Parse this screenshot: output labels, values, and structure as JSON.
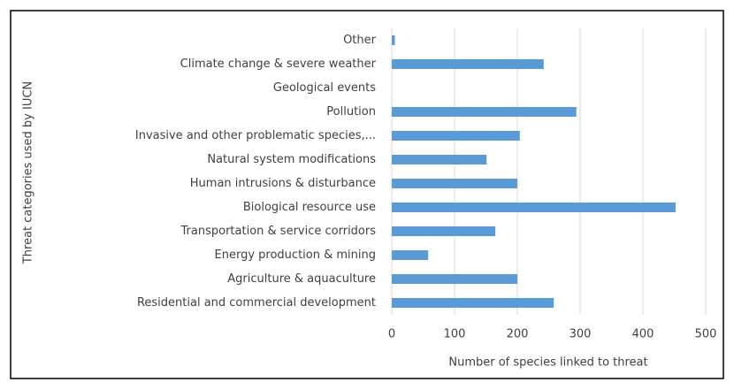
{
  "chart_data": {
    "type": "barh",
    "xlabel": "Number  of species linked to threat",
    "ylabel": "Threat categories used by IUCN",
    "categories": [
      "Other",
      "Climate change & severe weather",
      "Geological events",
      "Pollution",
      "Invasive and other problematic species,...",
      "Natural system modifications",
      "Human intrusions & disturbance",
      "Biological resource use",
      "Transportation & service corridors",
      "Energy production & mining",
      "Agriculture & aquaculture",
      "Residential and commercial development"
    ],
    "values": [
      5,
      242,
      0,
      294,
      204,
      151,
      200,
      452,
      165,
      58,
      200,
      258
    ],
    "color": "#5b9bd5",
    "xlim": [
      0,
      500
    ],
    "xticks": [
      0,
      100,
      200,
      300,
      400,
      500
    ],
    "grid": true
  }
}
